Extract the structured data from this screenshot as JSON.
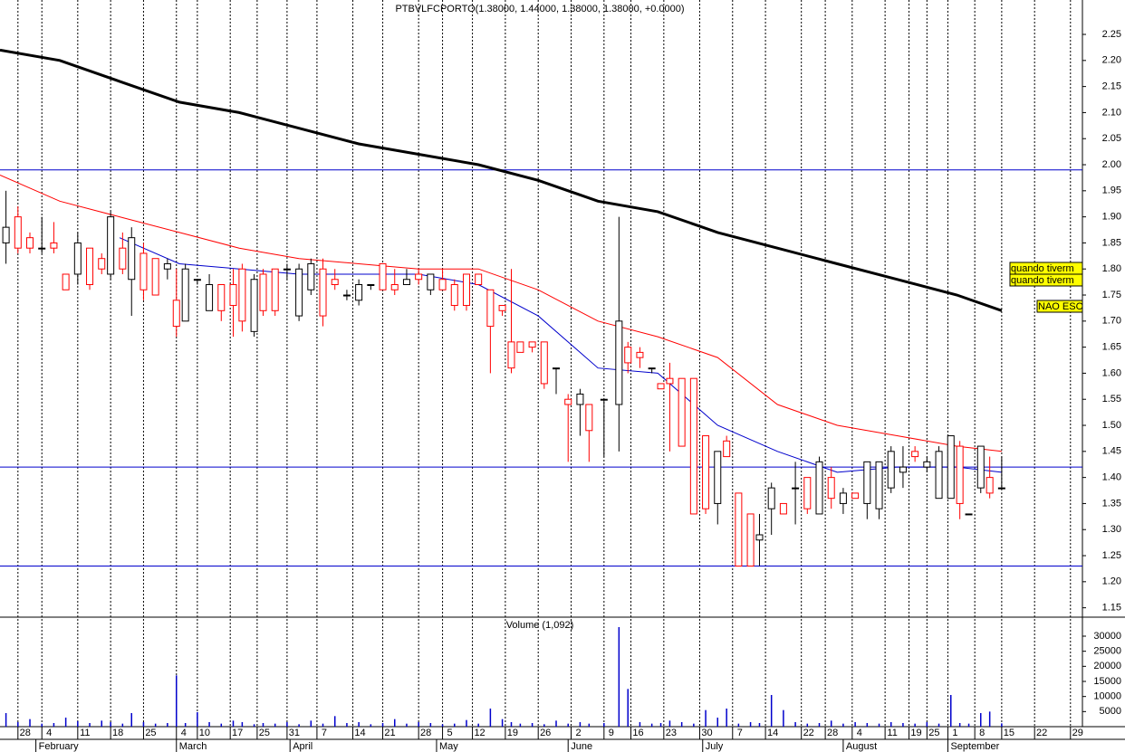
{
  "chart_data": [
    {
      "type": "candlestick",
      "title": "PTBVLFCPORTO(1.38000, 1.44000, 1.38000, 1.38000, +0.0000)",
      "up_color": "#000000",
      "down_color": "#ff0000",
      "xlim": [
        0,
        181
      ],
      "ylim": [
        1.132,
        2.316
      ],
      "yticks": [
        1.15,
        {
          "value": 1.2,
          "label": "1.20"
        },
        1.25,
        {
          "value": 1.3,
          "label": "1.30"
        },
        1.35,
        {
          "value": 1.4,
          "label": "1.40"
        },
        1.45,
        {
          "value": 1.5,
          "label": "1.50"
        },
        1.55,
        {
          "value": 1.6,
          "label": "1.60"
        },
        1.65,
        {
          "value": 1.7,
          "label": "1.70"
        },
        1.75,
        {
          "value": 1.8,
          "label": "1.80"
        },
        1.85,
        {
          "value": 1.9,
          "label": "1.90"
        },
        1.95,
        {
          "value": 2.0,
          "label": "2.00"
        },
        2.05,
        {
          "value": 2.1,
          "label": "2.10"
        },
        2.15,
        {
          "value": 2.2,
          "label": "2.20"
        },
        2.25
      ],
      "xticks": [
        {
          "value": 3,
          "label": "28"
        },
        {
          "value": 7,
          "label": "4"
        },
        {
          "value": 13,
          "label": "11"
        },
        {
          "value": 18.5,
          "label": "18"
        },
        {
          "value": 24,
          "label": "25"
        },
        {
          "value": 29.5,
          "label": "4"
        },
        {
          "value": 33,
          "label": "10"
        },
        {
          "value": 38.5,
          "label": "17"
        },
        {
          "value": 43,
          "label": "25"
        },
        {
          "value": 48,
          "label": "31"
        },
        {
          "value": 53,
          "label": "7"
        },
        {
          "value": 59,
          "label": "14"
        },
        {
          "value": 64,
          "label": "21"
        },
        {
          "value": 70,
          "label": "28"
        },
        {
          "value": 74,
          "label": "5"
        },
        {
          "value": 79,
          "label": "12"
        },
        {
          "value": 84.5,
          "label": "19"
        },
        {
          "value": 90,
          "label": "26"
        },
        {
          "value": 95.5,
          "label": "2"
        },
        {
          "value": 101,
          "label": "9"
        },
        {
          "value": 105.5,
          "label": "16"
        },
        {
          "value": 111,
          "label": "23"
        },
        {
          "value": 117,
          "label": "30"
        },
        {
          "value": 122.5,
          "label": "7"
        },
        {
          "value": 128,
          "label": "14"
        },
        {
          "value": 134,
          "label": "22"
        },
        {
          "value": 138,
          "label": "28"
        },
        {
          "value": 142.5,
          "label": "4"
        },
        {
          "value": 148,
          "label": "11"
        },
        {
          "value": 152,
          "label": "19"
        },
        {
          "value": 155,
          "label": "25"
        },
        {
          "value": 158.5,
          "label": "1"
        },
        {
          "value": 163,
          "label": "8"
        },
        {
          "value": 167.5,
          "label": "15"
        },
        {
          "value": 173,
          "label": "22"
        },
        {
          "value": 179,
          "label": "29"
        }
      ],
      "months": [
        {
          "value": 6,
          "label": "February"
        },
        {
          "value": 29.5,
          "label": "March"
        },
        {
          "value": 48.5,
          "label": "April"
        },
        {
          "value": 73,
          "label": "May"
        },
        {
          "value": 95,
          "label": "June"
        },
        {
          "value": 117.5,
          "label": "July"
        },
        {
          "value": 141,
          "label": "August"
        },
        {
          "value": 158.5,
          "label": "September"
        }
      ],
      "x": [
        1,
        3,
        5,
        7,
        9,
        11,
        13,
        15,
        17,
        18.5,
        20.5,
        22,
        24,
        26,
        28,
        29.5,
        31,
        33,
        35,
        37,
        39,
        40.5,
        42.5,
        44,
        46,
        48,
        50,
        52,
        54,
        56,
        58,
        60,
        62,
        64,
        66,
        68,
        70,
        72,
        74,
        76,
        78,
        80,
        82,
        84,
        85.5,
        87,
        89,
        91,
        93,
        95,
        97,
        98.5,
        101,
        103.5,
        105,
        107,
        109,
        110.5,
        112,
        114,
        116,
        118,
        120,
        121.5,
        123.5,
        125.5,
        127,
        129,
        131,
        133,
        135,
        137,
        139,
        141,
        143,
        145,
        147,
        149,
        151,
        153,
        155,
        157,
        159,
        160.5,
        162,
        164,
        165.5,
        167.5
      ],
      "open": [
        1.85,
        1.9,
        1.86,
        1.84,
        1.85,
        1.79,
        1.79,
        1.84,
        1.82,
        1.79,
        1.84,
        1.78,
        1.83,
        1.82,
        1.8,
        1.74,
        1.7,
        1.78,
        1.72,
        1.77,
        1.77,
        1.8,
        1.68,
        1.79,
        1.8,
        1.8,
        1.71,
        1.76,
        1.8,
        1.78,
        1.75,
        1.74,
        1.77,
        1.81,
        1.77,
        1.77,
        1.79,
        1.76,
        1.78,
        1.77,
        1.79,
        1.79,
        1.76,
        1.73,
        1.66,
        1.66,
        1.66,
        1.66,
        1.61,
        1.55,
        1.54,
        1.54,
        1.55,
        1.54,
        1.65,
        1.64,
        1.61,
        1.58,
        1.59,
        1.59,
        1.59,
        1.48,
        1.35,
        1.47,
        1.37,
        1.33,
        1.28,
        1.34,
        1.35,
        1.38,
        1.4,
        1.33,
        1.4,
        1.35,
        1.37,
        1.35,
        1.34,
        1.38,
        1.41,
        1.45,
        1.42,
        1.36,
        1.36,
        1.46,
        1.33,
        1.38,
        1.4,
        1.38
      ],
      "high": [
        1.95,
        1.92,
        1.87,
        1.9,
        1.89,
        1.79,
        1.87,
        1.84,
        1.83,
        1.91,
        1.87,
        1.88,
        1.85,
        1.82,
        1.82,
        1.8,
        1.81,
        1.78,
        1.79,
        1.77,
        1.8,
        1.81,
        1.79,
        1.8,
        1.8,
        1.81,
        1.81,
        1.82,
        1.82,
        1.8,
        1.76,
        1.78,
        1.77,
        1.81,
        1.8,
        1.8,
        1.8,
        1.79,
        1.8,
        1.78,
        1.79,
        1.79,
        1.76,
        1.73,
        1.8,
        1.66,
        1.66,
        1.66,
        1.61,
        1.56,
        1.57,
        1.54,
        1.55,
        1.9,
        1.66,
        1.65,
        1.61,
        1.58,
        1.62,
        1.59,
        1.59,
        1.48,
        1.45,
        1.48,
        1.37,
        1.33,
        1.33,
        1.39,
        1.35,
        1.43,
        1.4,
        1.44,
        1.42,
        1.38,
        1.37,
        1.43,
        1.43,
        1.46,
        1.46,
        1.46,
        1.44,
        1.46,
        1.48,
        1.47,
        1.33,
        1.46,
        1.44,
        1.44
      ],
      "low": [
        1.81,
        1.83,
        1.83,
        1.83,
        1.83,
        1.76,
        1.77,
        1.76,
        1.79,
        1.78,
        1.79,
        1.71,
        1.74,
        1.75,
        1.78,
        1.67,
        1.7,
        1.77,
        1.72,
        1.7,
        1.67,
        1.68,
        1.67,
        1.71,
        1.71,
        1.78,
        1.7,
        1.75,
        1.69,
        1.76,
        1.74,
        1.73,
        1.76,
        1.76,
        1.75,
        1.77,
        1.77,
        1.75,
        1.76,
        1.72,
        1.72,
        1.77,
        1.6,
        1.71,
        1.6,
        1.64,
        1.64,
        1.57,
        1.56,
        1.43,
        1.48,
        1.43,
        1.44,
        1.45,
        1.6,
        1.61,
        1.6,
        1.57,
        1.45,
        1.46,
        1.33,
        1.33,
        1.31,
        1.44,
        1.23,
        1.23,
        1.23,
        1.29,
        1.33,
        1.31,
        1.33,
        1.33,
        1.34,
        1.33,
        1.36,
        1.32,
        1.32,
        1.37,
        1.38,
        1.43,
        1.41,
        1.36,
        1.36,
        1.32,
        1.33,
        1.37,
        1.36,
        1.38
      ],
      "close": [
        1.88,
        1.84,
        1.84,
        1.84,
        1.84,
        1.76,
        1.85,
        1.77,
        1.8,
        1.9,
        1.8,
        1.86,
        1.76,
        1.75,
        1.81,
        1.69,
        1.8,
        1.78,
        1.77,
        1.72,
        1.73,
        1.7,
        1.78,
        1.72,
        1.72,
        1.8,
        1.8,
        1.81,
        1.71,
        1.77,
        1.75,
        1.77,
        1.77,
        1.76,
        1.76,
        1.78,
        1.78,
        1.79,
        1.76,
        1.73,
        1.73,
        1.77,
        1.69,
        1.72,
        1.61,
        1.64,
        1.65,
        1.58,
        1.61,
        1.54,
        1.56,
        1.49,
        1.55,
        1.7,
        1.62,
        1.63,
        1.61,
        1.57,
        1.58,
        1.46,
        1.33,
        1.34,
        1.45,
        1.44,
        1.23,
        1.23,
        1.29,
        1.38,
        1.33,
        1.38,
        1.34,
        1.43,
        1.36,
        1.37,
        1.36,
        1.43,
        1.43,
        1.45,
        1.42,
        1.44,
        1.43,
        1.45,
        1.48,
        1.35,
        1.33,
        1.46,
        1.37,
        1.38
      ],
      "hlines": [
        1.99,
        1.42,
        1.23
      ],
      "hline_color": "#0000cc",
      "overlays": [
        {
          "color": "#000000",
          "width": 3,
          "x": [
            0,
            10,
            20,
            30,
            40,
            50,
            60,
            70,
            80,
            90,
            100,
            110,
            120,
            130,
            140,
            150,
            160,
            167.5
          ],
          "values": [
            2.22,
            2.2,
            2.16,
            2.12,
            2.1,
            2.07,
            2.04,
            2.02,
            2.0,
            1.97,
            1.93,
            1.91,
            1.87,
            1.84,
            1.81,
            1.78,
            1.75,
            1.72
          ]
        },
        {
          "color": "#ff0000",
          "width": 1,
          "x": [
            0,
            10,
            20,
            30,
            40,
            50,
            60,
            70,
            80,
            90,
            100,
            110,
            120,
            130,
            140,
            150,
            160,
            167.5
          ],
          "values": [
            1.98,
            1.93,
            1.9,
            1.87,
            1.84,
            1.82,
            1.81,
            1.8,
            1.8,
            1.76,
            1.7,
            1.67,
            1.63,
            1.54,
            1.5,
            1.48,
            1.46,
            1.45
          ]
        },
        {
          "color": "#0000cc",
          "width": 1,
          "x": [
            0,
            10,
            20,
            30,
            40,
            50,
            60,
            70,
            80,
            90,
            100,
            110,
            120,
            130,
            140,
            150,
            160,
            167.5
          ],
          "values": [
            null,
            null,
            1.86,
            1.81,
            1.8,
            1.79,
            1.79,
            1.79,
            1.77,
            1.71,
            1.61,
            1.6,
            1.5,
            1.45,
            1.41,
            1.42,
            1.42,
            1.41
          ]
        }
      ],
      "annotations": [
        "quando tiverm",
        "quando tiverm",
        "NAO ESC"
      ],
      "annotation_color": "#ffff00"
    },
    {
      "type": "bar",
      "title": "Volume (1,092)",
      "color": "#0000cc",
      "xlim": [
        0,
        181
      ],
      "ylim": [
        0,
        36000
      ],
      "yticks": [
        5000,
        10000,
        15000,
        20000,
        25000,
        30000
      ],
      "x": [
        1,
        3,
        5,
        7,
        9,
        11,
        13,
        15,
        17,
        18.5,
        20.5,
        22,
        24,
        26,
        28,
        29.5,
        31,
        33,
        35,
        37,
        39,
        40.5,
        42.5,
        44,
        46,
        48,
        50,
        52,
        54,
        56,
        58,
        60,
        62,
        64,
        66,
        68,
        70,
        72,
        74,
        76,
        78,
        80,
        82,
        84,
        85.5,
        87,
        89,
        91,
        93,
        95,
        97,
        98.5,
        101,
        103.5,
        105,
        107,
        109,
        110.5,
        112,
        114,
        116,
        118,
        120,
        121.5,
        123.5,
        125.5,
        127,
        129,
        131,
        133,
        135,
        137,
        139,
        141,
        143,
        145,
        147,
        149,
        151,
        153,
        155,
        157,
        159,
        160.5,
        162,
        164,
        165.5,
        167.5
      ],
      "values": [
        4500,
        1500,
        2500,
        1000,
        1200,
        3000,
        1800,
        1200,
        2000,
        1500,
        1000,
        4500,
        1500,
        1000,
        1200,
        17000,
        1200,
        4800,
        1500,
        1000,
        2000,
        1500,
        800,
        1200,
        1000,
        1500,
        800,
        2000,
        1000,
        3500,
        1200,
        1500,
        800,
        1200,
        2500,
        1000,
        1500,
        1200,
        800,
        1000,
        2200,
        1000,
        6000,
        2500,
        1500,
        1000,
        1200,
        800,
        2000,
        1000,
        1500,
        1000,
        1200,
        33000,
        12500,
        1500,
        1000,
        1200,
        2000,
        1500,
        1000,
        5500,
        3000,
        6000,
        1000,
        1500,
        1200,
        10500,
        5500,
        1500,
        1000,
        1200,
        2000,
        1000,
        1500,
        1200,
        1000,
        1500,
        1200,
        1000,
        1500,
        1000,
        10500,
        1200,
        1000,
        4500,
        5000,
        1092
      ]
    }
  ]
}
